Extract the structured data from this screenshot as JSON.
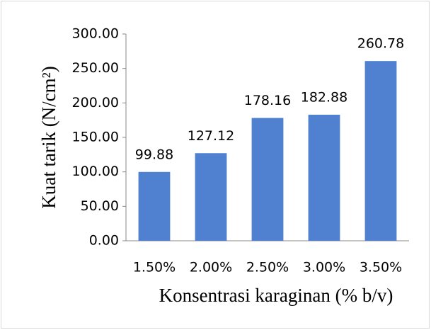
{
  "chart_data": {
    "type": "bar",
    "categories": [
      "1.50%",
      "2.00%",
      "2.50%",
      "3.00%",
      "3.50%"
    ],
    "values": [
      99.88,
      127.12,
      178.16,
      182.88,
      260.78
    ],
    "color": "#4f81d0",
    "xlabel": "Konsentrasi karaginan (% b/v)",
    "ylabel": "Kuat tarik (N/cm²)",
    "ylim": [
      0,
      300
    ],
    "yticks": [
      {
        "value": 0,
        "label": "0.00"
      },
      {
        "value": 50,
        "label": "50.00"
      },
      {
        "value": 100,
        "label": "100.00"
      },
      {
        "value": 150,
        "label": "150.00"
      },
      {
        "value": 200,
        "label": "200.00"
      },
      {
        "value": 250,
        "label": "250.00"
      },
      {
        "value": 300,
        "label": "300.00"
      }
    ],
    "grid": false
  }
}
